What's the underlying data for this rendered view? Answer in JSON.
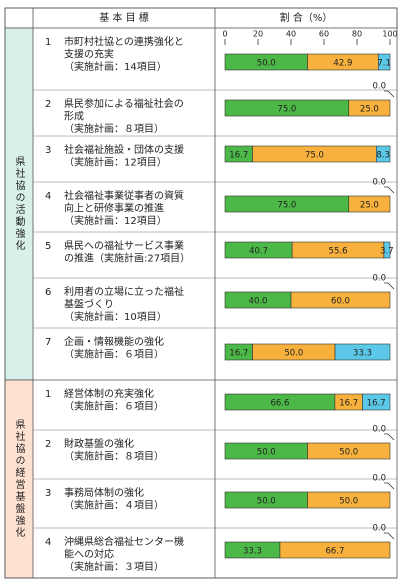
{
  "header": {
    "objective": "基 本 目 標",
    "ratio": "割 合（%）"
  },
  "axis": {
    "ticks": [
      0,
      20,
      40,
      60,
      80,
      100
    ],
    "lim": [
      0,
      100
    ]
  },
  "colors": [
    "#4cb848",
    "#f7b13c",
    "#5bc8e8"
  ],
  "groups": [
    {
      "label": "県社協の活動強化",
      "bg": "#d9f0ea",
      "rows": [
        {
          "no": "1",
          "lines": [
            "市町村社協との連携強化と",
            "支援の充実",
            "（実施計画：14項目）"
          ],
          "values": [
            50.0,
            42.9,
            7.1
          ],
          "value_labels": [
            "50.0",
            "42.9",
            "7.1"
          ]
        },
        {
          "no": "2",
          "lines": [
            "県民参加による福祉社会の",
            "形成",
            "（実施計画：８項目）"
          ],
          "values": [
            75.0,
            25.0,
            0.0
          ],
          "value_labels": [
            "75.0",
            "25.0",
            "0.0"
          ]
        },
        {
          "no": "3",
          "lines": [
            "社会福祉施設・団体の支援",
            "（実施計画：12項目）"
          ],
          "values": [
            16.7,
            75.0,
            8.3
          ],
          "value_labels": [
            "16.7",
            "75.0",
            "8.3"
          ]
        },
        {
          "no": "4",
          "lines": [
            "社会福祉事業従事者の資質",
            "向上と研修事業の推進",
            "（実施計画：12項目）"
          ],
          "values": [
            75.0,
            25.0,
            0.0
          ],
          "value_labels": [
            "75.0",
            "25.0",
            "0.0"
          ]
        },
        {
          "no": "5",
          "lines": [
            "県民への福祉サービス事業",
            "の推進（実施計画:27項目）"
          ],
          "values": [
            40.7,
            55.6,
            3.7
          ],
          "value_labels": [
            "40.7",
            "55.6",
            "3.7"
          ]
        },
        {
          "no": "6",
          "lines": [
            "利用者の立場に立った福祉",
            "基盤づくり",
            "（実施計画：10項目）"
          ],
          "values": [
            40.0,
            60.0,
            0.0
          ],
          "value_labels": [
            "40.0",
            "60.0",
            "0.0"
          ]
        },
        {
          "no": "7",
          "lines": [
            "企画・情報機能の強化",
            "（実施計画：６項目）"
          ],
          "values": [
            16.7,
            50.0,
            33.3
          ],
          "value_labels": [
            "16.7",
            "50.0",
            "33.3"
          ]
        }
      ]
    },
    {
      "label": "県社協の経営基盤強化",
      "bg": "#fde2d2",
      "rows": [
        {
          "no": "1",
          "lines": [
            "経営体制の充実強化",
            "（実施計画：６項目）"
          ],
          "values": [
            66.6,
            16.7,
            16.7
          ],
          "value_labels": [
            "66.6",
            "16.7",
            "16.7"
          ]
        },
        {
          "no": "2",
          "lines": [
            "財政基盤の強化",
            "（実施計画：８項目）"
          ],
          "values": [
            50.0,
            50.0,
            0.0
          ],
          "value_labels": [
            "50.0",
            "50.0",
            "0.0"
          ]
        },
        {
          "no": "3",
          "lines": [
            "事務局体制の強化",
            "（実施計画：４項目）"
          ],
          "values": [
            50.0,
            50.0,
            0.0
          ],
          "value_labels": [
            "50.0",
            "50.0",
            "0.0"
          ]
        },
        {
          "no": "4",
          "lines": [
            "沖縄県総合福祉センター機",
            "能への対応",
            "（実施計画：３項目）"
          ],
          "values": [
            33.3,
            66.7,
            0.0
          ],
          "value_labels": [
            "33.3",
            "66.7",
            "0.0"
          ]
        }
      ]
    }
  ]
}
